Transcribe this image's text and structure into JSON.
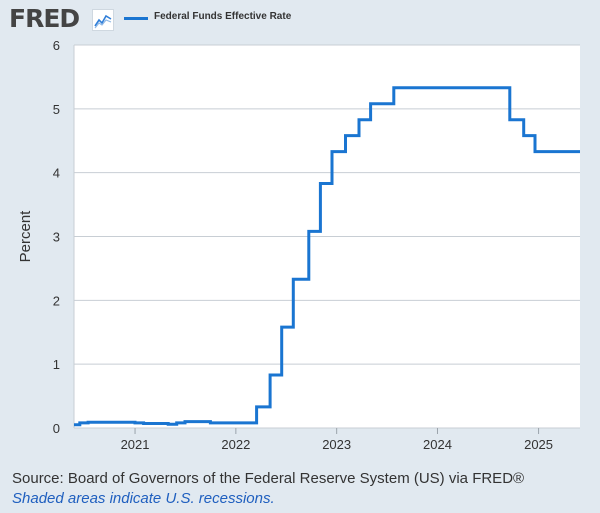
{
  "header": {
    "logo_text": "FRED",
    "logo_icon": "trend-line-icon",
    "legend_label": "Federal Funds Effective Rate"
  },
  "colors": {
    "series": "#1a75d1",
    "grid": "#c8ced4",
    "plot_bg": "#ffffff",
    "page_bg": "#e1e9f0"
  },
  "chart_data": {
    "type": "line",
    "title": "",
    "ylabel": "Percent",
    "xlabel": "",
    "ylim": [
      0,
      6
    ],
    "xlim": [
      "2020-05-25",
      "2025-05-31"
    ],
    "grid": true,
    "legend_position": "top-left",
    "y_ticks": [
      "0",
      "1",
      "2",
      "3",
      "4",
      "5",
      "6"
    ],
    "x_ticks": [
      {
        "date": "2021-01-01",
        "label": "2021"
      },
      {
        "date": "2022-01-01",
        "label": "2022"
      },
      {
        "date": "2023-01-01",
        "label": "2023"
      },
      {
        "date": "2024-01-01",
        "label": "2024"
      },
      {
        "date": "2025-01-01",
        "label": "2025"
      }
    ],
    "series": [
      {
        "name": "Federal Funds Effective Rate",
        "step": true,
        "points": [
          [
            "2020-05-25",
            0.05
          ],
          [
            "2020-06-15",
            0.08
          ],
          [
            "2020-07-15",
            0.09
          ],
          [
            "2020-08-15",
            0.09
          ],
          [
            "2020-10-01",
            0.09
          ],
          [
            "2020-12-01",
            0.09
          ],
          [
            "2021-01-01",
            0.08
          ],
          [
            "2021-02-01",
            0.07
          ],
          [
            "2021-03-01",
            0.07
          ],
          [
            "2021-04-01",
            0.07
          ],
          [
            "2021-05-01",
            0.06
          ],
          [
            "2021-06-01",
            0.08
          ],
          [
            "2021-07-01",
            0.1
          ],
          [
            "2021-10-01",
            0.08
          ],
          [
            "2022-01-01",
            0.08
          ],
          [
            "2022-03-17",
            0.33
          ],
          [
            "2022-05-05",
            0.83
          ],
          [
            "2022-06-16",
            1.58
          ],
          [
            "2022-07-28",
            2.33
          ],
          [
            "2022-09-22",
            3.08
          ],
          [
            "2022-11-03",
            3.83
          ],
          [
            "2022-12-15",
            4.33
          ],
          [
            "2023-02-02",
            4.58
          ],
          [
            "2023-03-23",
            4.83
          ],
          [
            "2023-05-04",
            5.08
          ],
          [
            "2023-07-27",
            5.33
          ],
          [
            "2024-09-19",
            4.83
          ],
          [
            "2024-11-08",
            4.58
          ],
          [
            "2024-12-19",
            4.33
          ],
          [
            "2025-05-31",
            4.33
          ]
        ]
      }
    ]
  },
  "footer": {
    "source": "Source: Board of Governors of the Federal Reserve System (US) via FRED®",
    "note": "Shaded areas indicate U.S. recessions."
  }
}
